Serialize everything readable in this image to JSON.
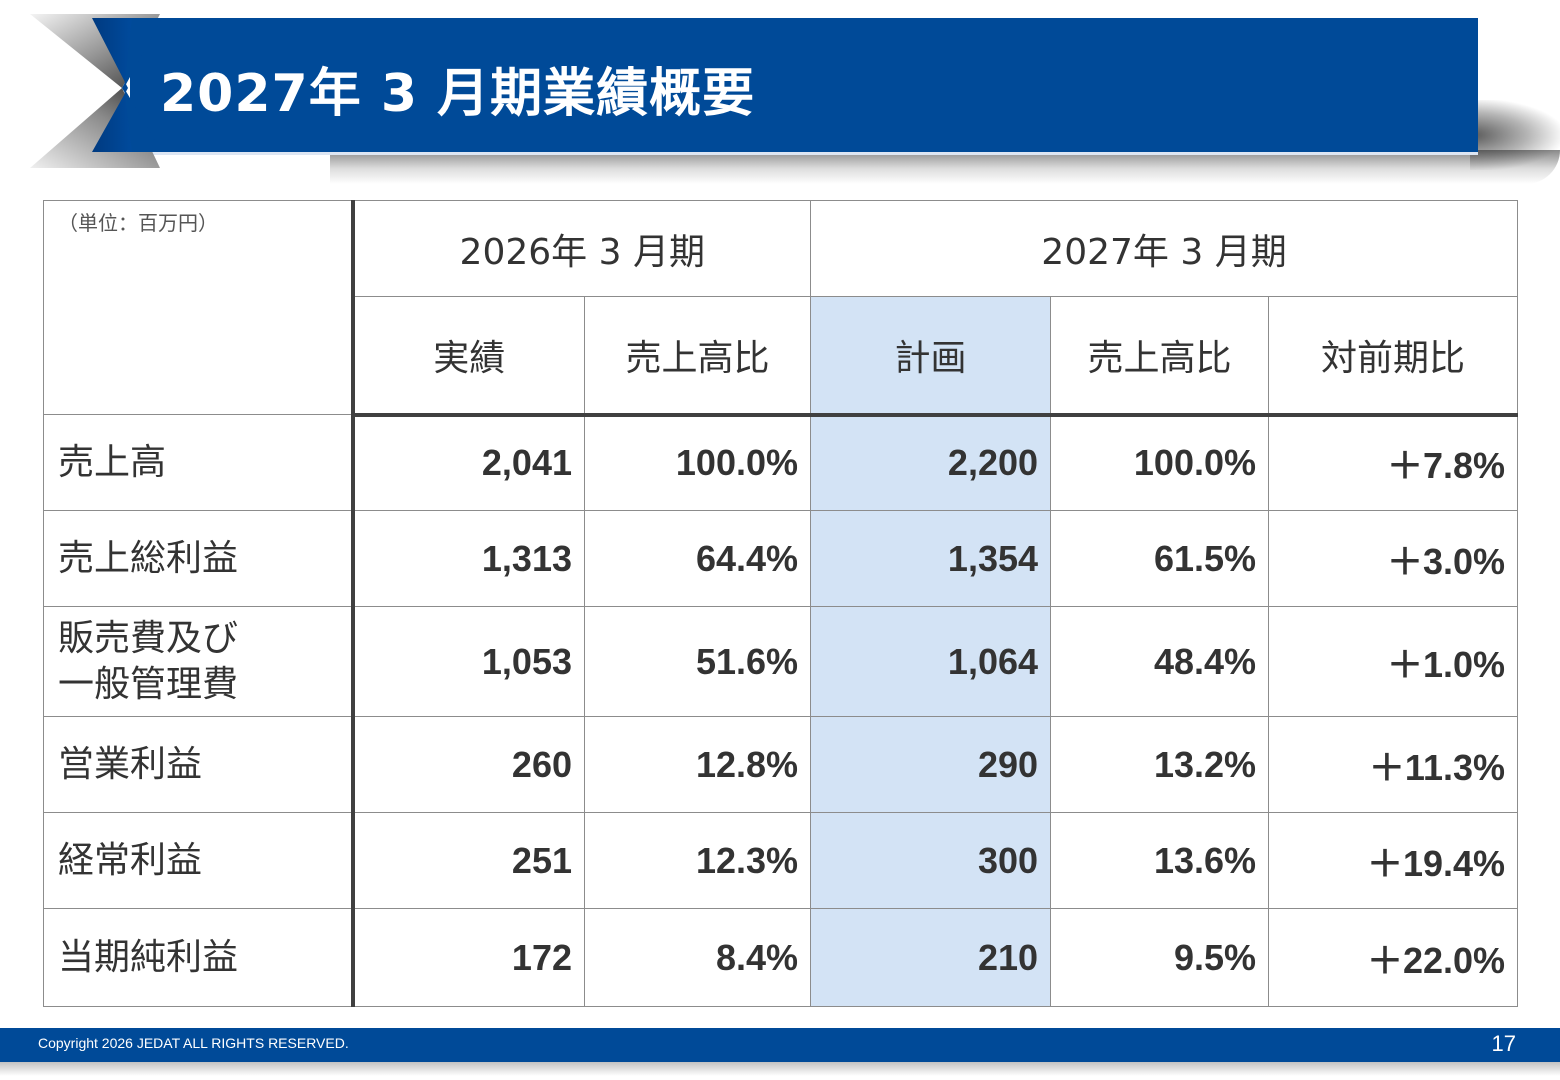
{
  "title": "2027年 3 月期業績概要",
  "table": {
    "unit": "（単位：百万円）",
    "period_prev": "2026年 3 月期",
    "period_next": "2027年 3 月期",
    "subheaders": {
      "actual": "実績",
      "ratio_prev": "売上高比",
      "plan": "計画",
      "ratio_next": "売上高比",
      "yoy": "対前期比"
    },
    "rows": [
      {
        "label_line1": "売上高",
        "label_line2": "",
        "actual": "2,041",
        "actual_ratio": "100.0%",
        "plan": "2,200",
        "plan_ratio": "100.0%",
        "yoy": "＋7.8%"
      },
      {
        "label_line1": "売上総利益",
        "label_line2": "",
        "actual": "1,313",
        "actual_ratio": "64.4%",
        "plan": "1,354",
        "plan_ratio": "61.5%",
        "yoy": "＋3.0%"
      },
      {
        "label_line1": "販売費及び",
        "label_line2": "一般管理費",
        "actual": "1,053",
        "actual_ratio": "51.6%",
        "plan": "1,064",
        "plan_ratio": "48.4%",
        "yoy": "＋1.0%"
      },
      {
        "label_line1": "営業利益",
        "label_line2": "",
        "actual": "260",
        "actual_ratio": "12.8%",
        "plan": "290",
        "plan_ratio": "13.2%",
        "yoy": "＋11.3%"
      },
      {
        "label_line1": "経常利益",
        "label_line2": "",
        "actual": "251",
        "actual_ratio": "12.3%",
        "plan": "300",
        "plan_ratio": "13.6%",
        "yoy": "＋19.4%"
      },
      {
        "label_line1": "当期純利益",
        "label_line2": "",
        "actual": "172",
        "actual_ratio": "8.4%",
        "plan": "210",
        "plan_ratio": "9.5%",
        "yoy": "＋22.0%"
      }
    ]
  },
  "footer": {
    "copyright": "Copyright 2026 JEDAT ALL RIGHTS RESERVED.",
    "page_number": "17"
  },
  "colors": {
    "brand_blue": "#004a98",
    "highlight": "#d3e3f5"
  }
}
